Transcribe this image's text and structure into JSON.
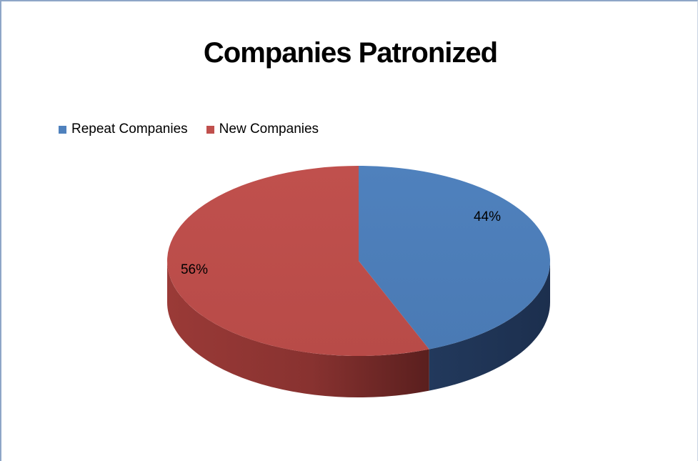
{
  "chart_data": {
    "type": "pie",
    "title": "Companies Patronized",
    "legend_position": "top-left",
    "slices": [
      {
        "name": "Repeat Companies",
        "value": 44,
        "label": "44%",
        "color": "#4f81bd"
      },
      {
        "name": "New Companies",
        "value": 56,
        "label": "56%",
        "color": "#c0504d"
      }
    ]
  }
}
